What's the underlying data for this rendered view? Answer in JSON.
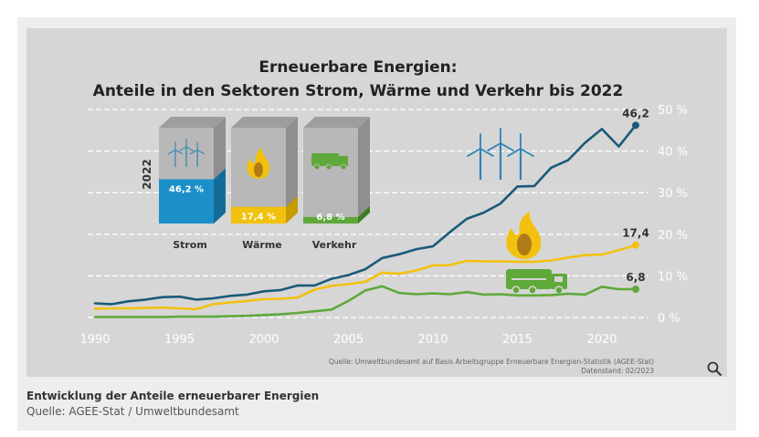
{
  "chart_data": {
    "type": "line",
    "title": "Erneuerbare Energien:",
    "subtitle": "Anteile in den Sektoren Strom, Wärme und Verkehr bis 2022",
    "xlabel": "",
    "ylabel": "",
    "xlim": [
      1990,
      2022
    ],
    "ylim": [
      0,
      50
    ],
    "x_ticks": [
      "1990",
      "1995",
      "2000",
      "2005",
      "2010",
      "2015",
      "2020"
    ],
    "y_ticks": [
      "0 %",
      "10 %",
      "20 %",
      "30 %",
      "40 %",
      "50 %"
    ],
    "grid": true,
    "x": [
      1990,
      1991,
      1992,
      1993,
      1994,
      1995,
      1996,
      1997,
      1998,
      1999,
      2000,
      2001,
      2002,
      2003,
      2004,
      2005,
      2006,
      2007,
      2008,
      2009,
      2010,
      2011,
      2012,
      2013,
      2014,
      2015,
      2016,
      2017,
      2018,
      2019,
      2020,
      2021,
      2022
    ],
    "series": [
      {
        "color": "#1a5a7a",
        "values": [
          3.4,
          3.2,
          3.9,
          4.3,
          4.9,
          5.0,
          4.3,
          4.6,
          5.2,
          5.5,
          6.3,
          6.6,
          7.7,
          7.7,
          9.3,
          10.2,
          11.6,
          14.3,
          15.2,
          16.4,
          17.1,
          20.5,
          23.7,
          25.2,
          27.4,
          31.5,
          31.6,
          36.0,
          37.8,
          42.0,
          45.3,
          41.1,
          46.2
        ],
        "end_label": "46,2"
      },
      {
        "color": "#f2c10f",
        "values": [
          2.1,
          2.2,
          2.2,
          2.3,
          2.4,
          2.2,
          2.0,
          3.2,
          3.6,
          4.0,
          4.4,
          4.5,
          4.8,
          6.7,
          7.6,
          8.0,
          8.6,
          10.8,
          10.5,
          11.3,
          12.5,
          12.6,
          13.6,
          13.5,
          13.5,
          13.4,
          13.4,
          13.7,
          14.4,
          15.0,
          15.1,
          16.2,
          17.4
        ],
        "end_label": "17,4"
      },
      {
        "color": "#5fa83a",
        "values": [
          0.1,
          0.1,
          0.1,
          0.1,
          0.1,
          0.2,
          0.2,
          0.2,
          0.3,
          0.4,
          0.6,
          0.8,
          1.1,
          1.5,
          1.9,
          4.0,
          6.5,
          7.5,
          5.9,
          5.6,
          5.8,
          5.6,
          6.1,
          5.5,
          5.6,
          5.3,
          5.3,
          5.4,
          5.7,
          5.5,
          7.4,
          6.8,
          6.8
        ],
        "end_label": "6,8"
      }
    ],
    "inset": {
      "year_label": "2022",
      "items": [
        {
          "name": "Strom",
          "value": 46.2,
          "label": "46,2 %",
          "color": "#1d8fc8",
          "dark": "#136c97",
          "icon": "wind-turbines-icon"
        },
        {
          "name": "Wärme",
          "value": 17.4,
          "label": "17,4 %",
          "color": "#f2c10f",
          "dark": "#c69b00",
          "icon": "flame-icon"
        },
        {
          "name": "Verkehr",
          "value": 6.8,
          "label": "6,8 %",
          "color": "#5fa83a",
          "dark": "#3f7f24",
          "icon": "truck-icon"
        }
      ]
    },
    "source_line1": "Quelle: Umweltbundesamt auf Basis Arbeitsgruppe Erneuerbare Energien-Statistik (AGEE-Stat)",
    "source_line2": "Datenstand: 02/2023"
  },
  "caption": {
    "title": "Entwicklung der Anteile erneuerbarer Energien",
    "source": "Quelle: AGEE-Stat / Umweltbundesamt"
  },
  "controls": {
    "zoom_icon": "magnifier-icon"
  }
}
